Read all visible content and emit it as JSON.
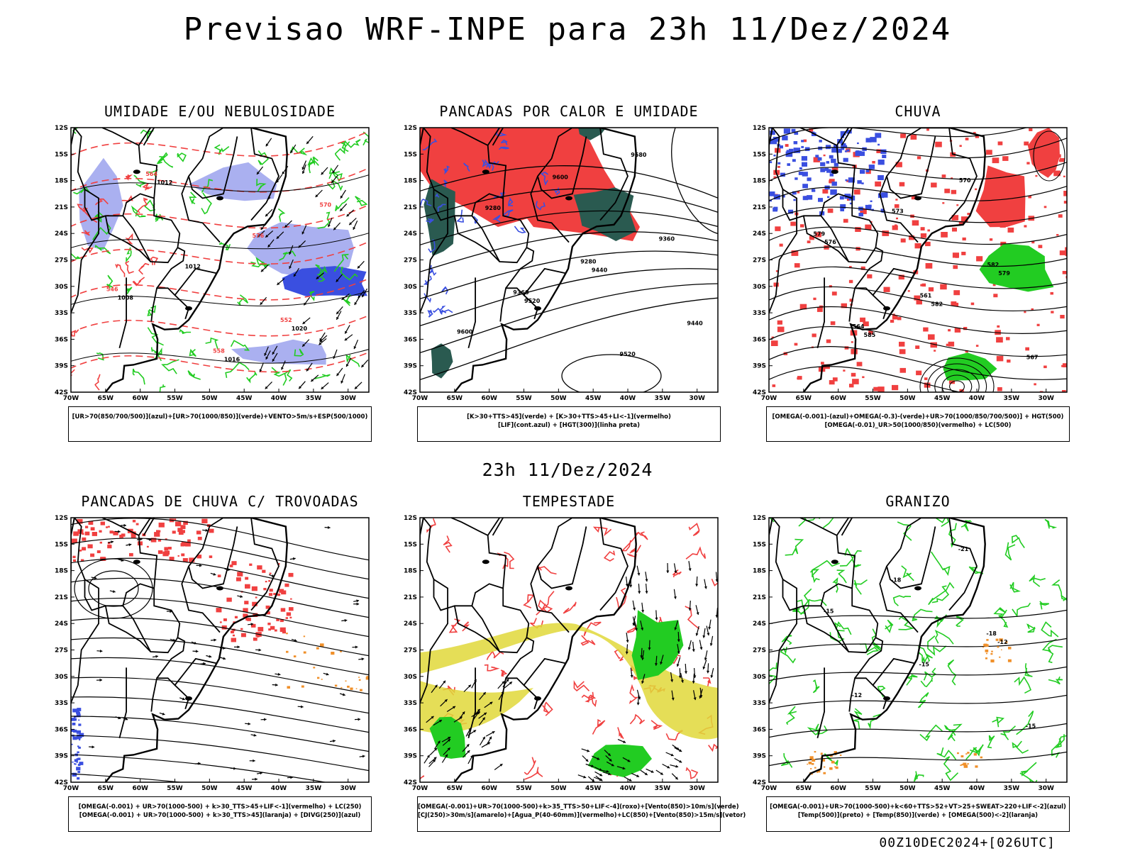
{
  "title": "Previsao WRF-INPE  para 23h 11/Dez/2024",
  "mid_title": "23h 11/Dez/2024",
  "footer": "00Z10DEC2024+[026UTC]",
  "lat_labels": [
    "12S",
    "15S",
    "18S",
    "21S",
    "24S",
    "27S",
    "30S",
    "33S",
    "36S",
    "39S",
    "42S"
  ],
  "lon_labels": [
    "70W",
    "65W",
    "60W",
    "55W",
    "50W",
    "45W",
    "40W",
    "35W",
    "30W"
  ],
  "colors": {
    "red": "#f04040",
    "blue": "#3a4fe0",
    "lightblue": "#aab0f0",
    "green": "#22cc22",
    "darkgreen": "#2a5a50",
    "yellow": "#e0d83a",
    "orange": "#f0902a",
    "black": "#000000"
  },
  "panels": [
    {
      "title": "UMIDADE E/OU NEBULOSIDADE",
      "legend": [
        "[UR>70(850/700/500)](azul)+[UR>70(1000/850)](verde)+VENTO>5m/s+ESP(500/1000)"
      ],
      "labels": [
        "1012",
        "1016",
        "1020",
        "1008",
        "1012",
        "576",
        "570",
        "564",
        "558",
        "552",
        "546"
      ]
    },
    {
      "title": "PANCADAS POR CALOR E UMIDADE",
      "legend": [
        "[K>30+TTS>45](verde) + [K>30+TTS>45+LI<-1](vermelho)",
        "[LIF](cont.azul) + [HGT(300)](linha preta)"
      ],
      "labels": [
        "9680",
        "9600",
        "9520",
        "9440",
        "9360",
        "9280",
        "9600",
        "9520",
        "9440",
        "9360",
        "9280"
      ]
    },
    {
      "title": "CHUVA",
      "legend": [
        "[OMEGA(-0.001)-(azul)+OMEGA(-0.3)-(verde)+UR>70(1000/850/700/500)] + HGT(500)",
        "[OMEGA(-0.01)_UR>50(1000/850)(vermelho) + LC(500)"
      ],
      "labels": [
        "585",
        "582",
        "579",
        "576",
        "573",
        "570",
        "567",
        "564",
        "561",
        "582",
        "579"
      ]
    },
    {
      "title": "PANCADAS DE CHUVA C/ TROVOADAS",
      "legend": [
        "[OMEGA(-0.001) + UR>70(1000-500) + k>30_TTS>45+LIF<-1](vermelho) + LC(250)",
        "[OMEGA(-0.001) + UR>70(1000-500) + k>30_TTS>45](laranja) + [DIVG(250)](azul)"
      ],
      "labels": []
    },
    {
      "title": "TEMPESTADE",
      "legend": [
        "[OMEGA(-0.001)+UR>70(1000-500)+k>35_TTS>50+LIF<-4](roxo)+[Vento(850)>10m/s](verde)",
        "[CJ(250)>30m/s](amarelo)+[Agua_P(40-60mm)](vermelho)+LC(850)+[Vento(850)>15m/s](vetor)"
      ],
      "labels": []
    },
    {
      "title": "GRANIZO",
      "legend": [
        "[OMEGA(-0.001)+UR>70(1000-500)+k<60+TTS>52+VT>25+SWEAT>220+LIF<-2](azul)",
        "[Temp(500)](preto) + [Temp(850)](verde) + [OMEGA(500)<-2](laranja)"
      ],
      "labels": [
        "-12",
        "-15",
        "-18",
        "-21",
        "-15",
        "-12",
        "-15",
        "-18"
      ]
    }
  ]
}
